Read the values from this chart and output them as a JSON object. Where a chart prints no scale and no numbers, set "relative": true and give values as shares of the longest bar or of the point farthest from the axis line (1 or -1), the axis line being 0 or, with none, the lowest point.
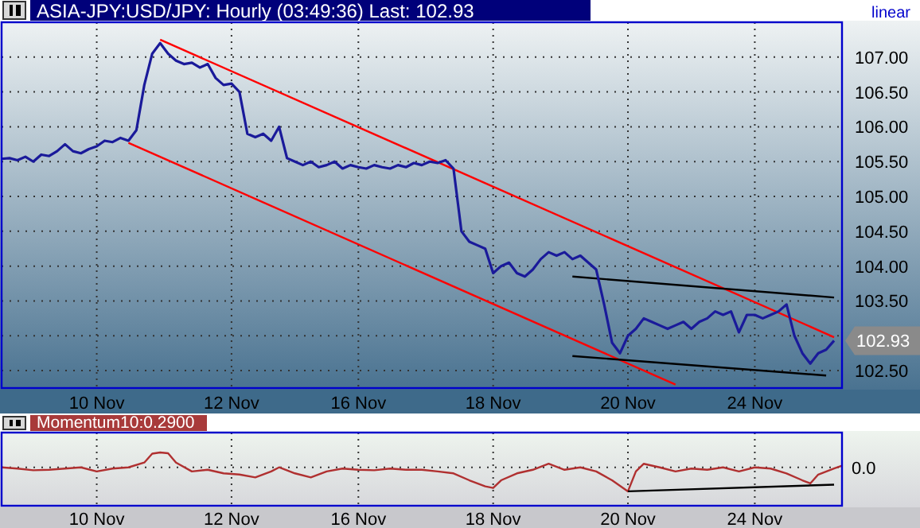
{
  "chart_data": [
    {
      "type": "line",
      "title": "ASIA-JPY:USD/JPY: Hourly (03:49:36) Last: 102.93",
      "annotations": [
        "linear",
        "102.93"
      ],
      "grid": true,
      "categories": [
        null,
        null,
        null,
        null,
        null,
        null,
        null,
        null,
        null,
        null,
        null,
        null,
        "10 Nov",
        null,
        null,
        null,
        null,
        null,
        null,
        null,
        null,
        null,
        null,
        null,
        null,
        null,
        null,
        null,
        null,
        "12 Nov",
        null,
        null,
        null,
        null,
        null,
        null,
        null,
        null,
        null,
        null,
        null,
        null,
        null,
        null,
        null,
        "16 Nov",
        null,
        null,
        null,
        null,
        null,
        null,
        null,
        null,
        null,
        null,
        null,
        null,
        null,
        null,
        null,
        null,
        "18 Nov",
        null,
        null,
        null,
        null,
        null,
        null,
        null,
        null,
        null,
        null,
        null,
        null,
        null,
        null,
        null,
        null,
        "20 Nov",
        null,
        null,
        null,
        null,
        null,
        null,
        null,
        null,
        null,
        null,
        null,
        null,
        null,
        null,
        null,
        "24 Nov",
        null,
        null,
        null,
        null,
        null,
        null,
        null,
        null,
        null,
        null,
        null
      ],
      "ylim": [
        102.25,
        107.5
      ],
      "yticks": [
        {
          "value": 102.5,
          "label": "102.50"
        },
        {
          "value": 103,
          "label": null
        },
        {
          "value": 103.5,
          "label": "103.50"
        },
        {
          "value": 104,
          "label": "104.00"
        },
        {
          "value": 104.5,
          "label": "104.50"
        },
        {
          "value": 105,
          "label": "105.00"
        },
        {
          "value": 105.5,
          "label": "105.50"
        },
        {
          "value": 106,
          "label": "106.00"
        },
        {
          "value": 106.5,
          "label": "106.50"
        },
        {
          "value": 107,
          "label": "107.00"
        }
      ],
      "series": [
        {
          "color": "#ff0000",
          "values": [
            null,
            null,
            null,
            null,
            null,
            null,
            null,
            null,
            null,
            null,
            null,
            null,
            null,
            null,
            null,
            null,
            null,
            null,
            null,
            null,
            107.25,
            null,
            null,
            null,
            null,
            null,
            null,
            null,
            null,
            null,
            null,
            null,
            null,
            null,
            null,
            null,
            null,
            null,
            null,
            null,
            null,
            null,
            null,
            null,
            null,
            null,
            null,
            null,
            null,
            null,
            null,
            null,
            null,
            null,
            null,
            null,
            null,
            null,
            null,
            null,
            null,
            null,
            null,
            null,
            null,
            null,
            null,
            null,
            null,
            null,
            null,
            null,
            null,
            null,
            null,
            null,
            null,
            null,
            null,
            null,
            null,
            null,
            null,
            null,
            null,
            null,
            null,
            null,
            null,
            null,
            null,
            null,
            null,
            null,
            null,
            null,
            null,
            null,
            null,
            null,
            null,
            null,
            null,
            null,
            null,
            102.98,
            null
          ]
        },
        {
          "color": "#ff0000",
          "values": [
            null,
            null,
            null,
            null,
            null,
            null,
            null,
            null,
            null,
            null,
            null,
            null,
            null,
            null,
            null,
            null,
            105.77,
            null,
            null,
            null,
            null,
            null,
            null,
            null,
            null,
            null,
            null,
            null,
            null,
            null,
            null,
            null,
            null,
            null,
            null,
            null,
            null,
            null,
            null,
            null,
            null,
            null,
            null,
            null,
            null,
            null,
            null,
            null,
            null,
            null,
            null,
            null,
            null,
            null,
            null,
            null,
            null,
            null,
            null,
            null,
            null,
            null,
            null,
            null,
            null,
            null,
            null,
            null,
            null,
            null,
            null,
            null,
            null,
            null,
            null,
            null,
            null,
            null,
            null,
            null,
            null,
            null,
            null,
            null,
            null,
            102.3,
            null,
            null,
            null,
            null,
            null,
            null,
            null,
            null,
            null,
            null,
            null,
            null,
            null,
            null,
            null,
            null,
            null,
            null,
            null,
            null,
            null
          ]
        },
        {
          "color": "#000000",
          "values": [
            null,
            null,
            null,
            null,
            null,
            null,
            null,
            null,
            null,
            null,
            null,
            null,
            null,
            null,
            null,
            null,
            null,
            null,
            null,
            null,
            null,
            null,
            null,
            null,
            null,
            null,
            null,
            null,
            null,
            null,
            null,
            null,
            null,
            null,
            null,
            null,
            null,
            null,
            null,
            null,
            null,
            null,
            null,
            null,
            null,
            null,
            null,
            null,
            null,
            null,
            null,
            null,
            null,
            null,
            null,
            null,
            null,
            null,
            null,
            null,
            null,
            null,
            null,
            null,
            null,
            null,
            null,
            null,
            null,
            null,
            null,
            null,
            103.85,
            null,
            null,
            null,
            null,
            null,
            null,
            null,
            null,
            null,
            null,
            null,
            null,
            null,
            null,
            null,
            null,
            null,
            null,
            null,
            null,
            null,
            null,
            null,
            null,
            null,
            null,
            null,
            null,
            null,
            null,
            null,
            null,
            103.55,
            null
          ]
        },
        {
          "color": "#000000",
          "values": [
            null,
            null,
            null,
            null,
            null,
            null,
            null,
            null,
            null,
            null,
            null,
            null,
            null,
            null,
            null,
            null,
            null,
            null,
            null,
            null,
            null,
            null,
            null,
            null,
            null,
            null,
            null,
            null,
            null,
            null,
            null,
            null,
            null,
            null,
            null,
            null,
            null,
            null,
            null,
            null,
            null,
            null,
            null,
            null,
            null,
            null,
            null,
            null,
            null,
            null,
            null,
            null,
            null,
            null,
            null,
            null,
            null,
            null,
            null,
            null,
            null,
            null,
            null,
            null,
            null,
            null,
            null,
            null,
            null,
            null,
            null,
            null,
            102.71,
            null,
            null,
            null,
            null,
            null,
            null,
            null,
            null,
            null,
            null,
            null,
            null,
            null,
            null,
            null,
            null,
            null,
            null,
            null,
            null,
            null,
            null,
            null,
            null,
            null,
            null,
            null,
            null,
            null,
            null,
            null,
            102.43,
            null,
            null
          ]
        },
        {
          "color": "#1a1a9a",
          "values": [
            105.54,
            105.55,
            105.52,
            105.57,
            105.5,
            105.6,
            105.58,
            105.65,
            105.75,
            105.65,
            105.62,
            105.68,
            105.72,
            105.8,
            105.78,
            105.84,
            105.8,
            105.95,
            106.6,
            107.05,
            107.2,
            107.05,
            106.95,
            106.9,
            106.92,
            106.85,
            106.9,
            106.7,
            106.6,
            106.62,
            106.5,
            105.9,
            105.85,
            105.9,
            105.8,
            106.0,
            105.55,
            105.5,
            105.45,
            105.5,
            105.42,
            105.45,
            105.5,
            105.4,
            105.45,
            105.42,
            105.4,
            105.45,
            105.42,
            105.4,
            105.45,
            105.42,
            105.48,
            105.45,
            105.5,
            105.48,
            105.52,
            105.4,
            104.5,
            104.35,
            104.3,
            104.25,
            103.9,
            104.0,
            104.05,
            103.9,
            103.85,
            103.95,
            104.1,
            104.2,
            104.15,
            104.2,
            104.1,
            104.15,
            104.05,
            103.95,
            103.45,
            102.9,
            102.75,
            103.0,
            103.1,
            103.25,
            103.2,
            103.15,
            103.1,
            103.15,
            103.2,
            103.1,
            103.2,
            103.25,
            103.35,
            103.3,
            103.35,
            103.05,
            103.3,
            103.3,
            103.25,
            103.3,
            103.35,
            103.45,
            103.0,
            102.75,
            102.6,
            102.75,
            102.8,
            102.93,
            null
          ]
        }
      ]
    },
    {
      "type": "line",
      "title": "Momentum10:0.2900",
      "relative": true,
      "grid": "x",
      "categories": [
        null,
        null,
        null,
        null,
        null,
        null,
        null,
        null,
        null,
        null,
        null,
        null,
        "10 Nov",
        null,
        null,
        null,
        null,
        null,
        null,
        null,
        null,
        null,
        null,
        null,
        null,
        null,
        null,
        null,
        null,
        "12 Nov",
        null,
        null,
        null,
        null,
        null,
        null,
        null,
        null,
        null,
        null,
        null,
        null,
        null,
        null,
        null,
        "16 Nov",
        null,
        null,
        null,
        null,
        null,
        null,
        null,
        null,
        null,
        null,
        null,
        null,
        null,
        null,
        null,
        null,
        "18 Nov",
        null,
        null,
        null,
        null,
        null,
        null,
        null,
        null,
        null,
        null,
        null,
        null,
        null,
        null,
        null,
        null,
        "20 Nov",
        null,
        null,
        null,
        null,
        null,
        null,
        null,
        null,
        null,
        null,
        null,
        null,
        null,
        null,
        null,
        "24 Nov",
        null,
        null,
        null,
        null,
        null,
        null,
        null,
        null,
        null,
        null,
        null
      ],
      "ref_lines": [
        {
          "axis": "y",
          "value": 0,
          "label": "0.0"
        }
      ],
      "series": [
        {
          "color": "#b03030",
          "values": [
            0,
            null,
            -0.05,
            null,
            -0.12,
            null,
            -0.1,
            null,
            -0.05,
            null,
            0,
            null,
            -0.17,
            null,
            -0.05,
            null,
            0,
            null,
            0.2,
            0.57,
            0.62,
            0.59,
            0.2,
            null,
            -0.17,
            null,
            -0.1,
            null,
            -0.25,
            null,
            -0.3,
            null,
            -0.42,
            null,
            -0.17,
            0,
            null,
            -0.25,
            null,
            -0.42,
            null,
            -0.17,
            null,
            -0.05,
            null,
            -0.1,
            null,
            -0.12,
            null,
            -0.05,
            null,
            -0.1,
            null,
            -0.1,
            null,
            -0.17,
            null,
            -0.25,
            null,
            -0.54,
            null,
            -0.79,
            -0.86,
            -0.54,
            null,
            -0.25,
            null,
            -0.1,
            null,
            0.15,
            null,
            -0.1,
            null,
            0,
            null,
            -0.17,
            null,
            -0.54,
            null,
            -1,
            -0.17,
            0.15,
            null,
            0,
            null,
            -0.17,
            null,
            -0.05,
            null,
            -0.1,
            null,
            0,
            null,
            -0.17,
            null,
            0,
            null,
            -0.05,
            null,
            -0.25,
            null,
            -0.54,
            -0.67,
            -0.3,
            null,
            -0.05,
            0.07
          ]
        },
        {
          "color": "#000000",
          "values": [
            null,
            null,
            null,
            null,
            null,
            null,
            null,
            null,
            null,
            null,
            null,
            null,
            null,
            null,
            null,
            null,
            null,
            null,
            null,
            null,
            null,
            null,
            null,
            null,
            null,
            null,
            null,
            null,
            null,
            null,
            null,
            null,
            null,
            null,
            null,
            null,
            null,
            null,
            null,
            null,
            null,
            null,
            null,
            null,
            null,
            null,
            null,
            null,
            null,
            null,
            null,
            null,
            null,
            null,
            null,
            null,
            null,
            null,
            null,
            null,
            null,
            null,
            null,
            null,
            null,
            null,
            null,
            null,
            null,
            null,
            null,
            null,
            null,
            null,
            null,
            null,
            null,
            null,
            null,
            -1,
            null,
            null,
            null,
            null,
            null,
            null,
            null,
            null,
            null,
            null,
            null,
            null,
            null,
            null,
            null,
            null,
            null,
            null,
            null,
            null,
            null,
            null,
            null,
            null,
            null,
            -0.72,
            null
          ]
        }
      ]
    }
  ]
}
